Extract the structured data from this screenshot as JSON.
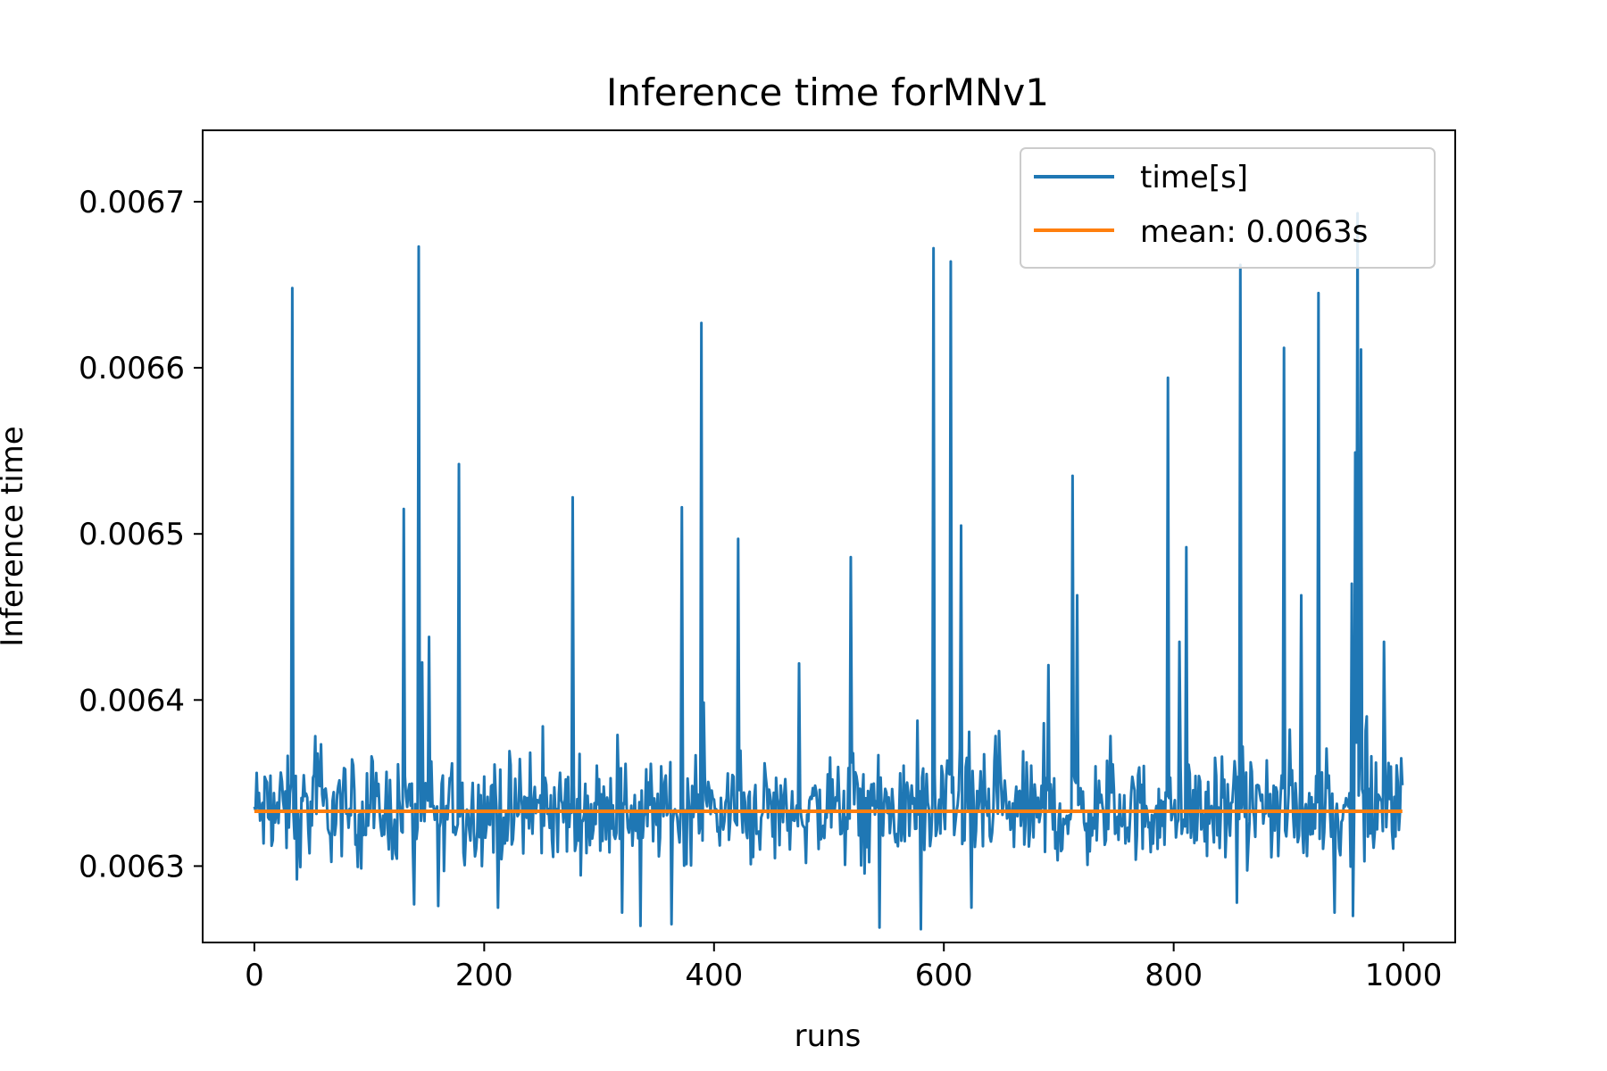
{
  "chart_data": {
    "type": "line",
    "title": "Inference time forMNv1",
    "xlabel": "runs",
    "ylabel": "Inference time",
    "xlim": [
      -45,
      1045
    ],
    "ylim": [
      0.006254,
      0.006743
    ],
    "xticks": [
      0,
      200,
      400,
      600,
      800,
      1000
    ],
    "xtick_labels": [
      "0",
      "200",
      "400",
      "600",
      "800",
      "1000"
    ],
    "yticks": [
      0.0063,
      0.0064,
      0.0065,
      0.0066,
      0.0067
    ],
    "ytick_labels": [
      "0.0063",
      "0.0064",
      "0.0065",
      "0.0066",
      "0.0067"
    ],
    "grid": false,
    "legend_position": "upper-right",
    "colors": {
      "time": "#1f77b4",
      "mean": "#ff7f0e"
    },
    "series": [
      {
        "name": "time[s]",
        "color": "#1f77b4",
        "n_points": 1000,
        "baseline": 0.006333,
        "noise": 2.8e-05,
        "spikes": [
          [
            33,
            0.006648
          ],
          [
            130,
            0.006515
          ],
          [
            143,
            0.006673
          ],
          [
            152,
            0.006438
          ],
          [
            178,
            0.006542
          ],
          [
            277,
            0.006522
          ],
          [
            372,
            0.006516
          ],
          [
            389,
            0.006627
          ],
          [
            421,
            0.006497
          ],
          [
            474,
            0.006422
          ],
          [
            519,
            0.006486
          ],
          [
            591,
            0.006672
          ],
          [
            606,
            0.006664
          ],
          [
            615,
            0.006505
          ],
          [
            691,
            0.006421
          ],
          [
            712,
            0.006535
          ],
          [
            716,
            0.006463
          ],
          [
            795,
            0.006594
          ],
          [
            805,
            0.006435
          ],
          [
            811,
            0.006492
          ],
          [
            855,
            0.006685
          ],
          [
            858,
            0.006662
          ],
          [
            896,
            0.006612
          ],
          [
            911,
            0.006463
          ],
          [
            926,
            0.006645
          ],
          [
            955,
            0.00647
          ],
          [
            958,
            0.006549
          ],
          [
            960,
            0.006693
          ],
          [
            963,
            0.006611
          ],
          [
            983,
            0.006435
          ]
        ],
        "dips": [
          [
            37,
            0.006292
          ],
          [
            139,
            0.006277
          ],
          [
            160,
            0.006276
          ],
          [
            212,
            0.006275
          ],
          [
            320,
            0.006272
          ],
          [
            336,
            0.006264
          ],
          [
            363,
            0.006265
          ],
          [
            544,
            0.006263
          ],
          [
            580,
            0.006262
          ],
          [
            624,
            0.006275
          ],
          [
            855,
            0.006278
          ],
          [
            940,
            0.006272
          ],
          [
            956,
            0.00627
          ]
        ]
      },
      {
        "name": "mean: 0.0063s",
        "color": "#ff7f0e",
        "x": [
          0,
          999
        ],
        "values": [
          0.006333,
          0.006333
        ]
      }
    ]
  }
}
